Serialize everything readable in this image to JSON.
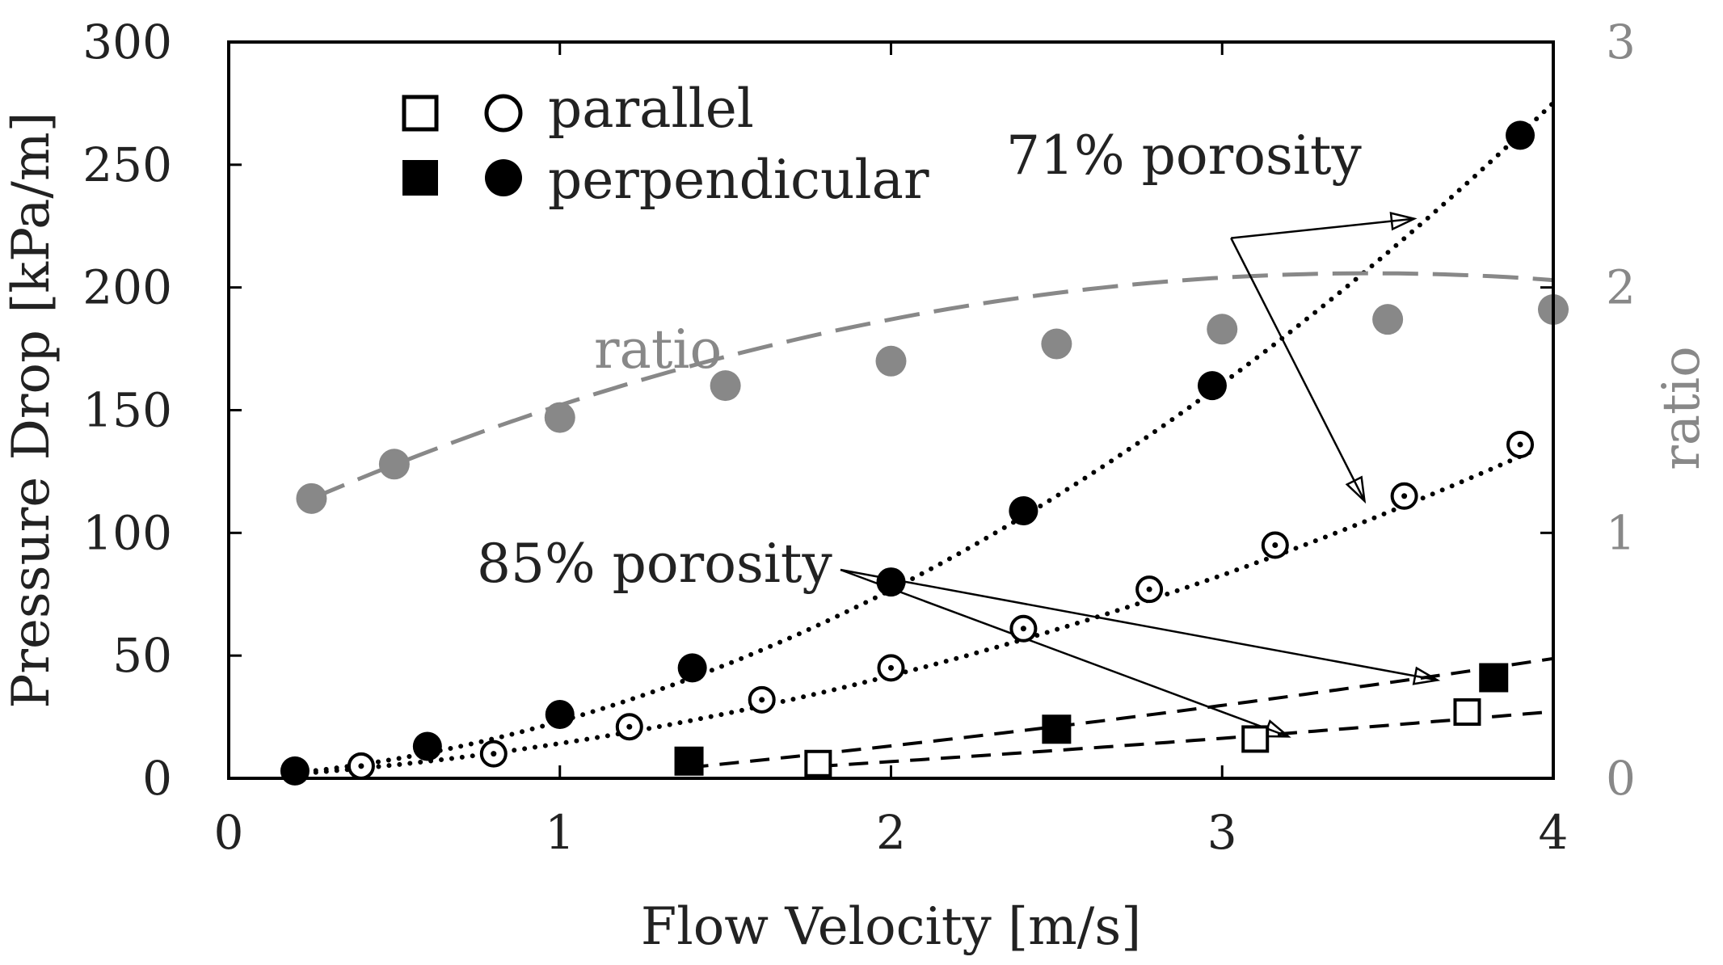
{
  "chart_data": {
    "type": "scatter",
    "title": "",
    "xlabel": "Flow Velocity [m/s]",
    "ylabel": "Pressure Drop [kPa/m]",
    "y2label": "ratio",
    "xlim": [
      0,
      4
    ],
    "ylim": [
      0,
      300
    ],
    "y2lim": [
      0,
      3
    ],
    "x_ticks": [
      0,
      1,
      2,
      3,
      4
    ],
    "x_tick_labels": [
      "0",
      "1",
      "2",
      "3",
      "4"
    ],
    "y_ticks": [
      0,
      50,
      100,
      150,
      200,
      250,
      300
    ],
    "y_tick_labels": [
      "0",
      "50",
      "100",
      "150",
      "200",
      "250",
      "300"
    ],
    "y2_ticks": [
      0,
      1,
      2,
      3
    ],
    "y2_tick_labels": [
      "0",
      "1",
      "2",
      "3"
    ],
    "grid": false,
    "legend": {
      "placement": "top-left",
      "entries": [
        {
          "label": "parallel",
          "markers": [
            "open-square",
            "open-circle"
          ]
        },
        {
          "label": "perpendicular",
          "markers": [
            "filled-square",
            "filled-circle"
          ]
        }
      ]
    },
    "series": [
      {
        "name": "71% porosity perpendicular",
        "marker": "filled-circle",
        "color": "#000000",
        "axis": "left",
        "x": [
          0.2,
          0.6,
          1.0,
          1.4,
          2.0,
          2.4,
          2.97,
          3.9
        ],
        "y": [
          3,
          13,
          26,
          45,
          80,
          109,
          160,
          262
        ]
      },
      {
        "name": "71% porosity parallel",
        "marker": "open-circle",
        "color": "#000000",
        "axis": "left",
        "x": [
          0.4,
          0.8,
          1.21,
          1.61,
          2.0,
          2.4,
          2.78,
          3.16,
          3.55,
          3.9
        ],
        "y": [
          5,
          10,
          21,
          32,
          45,
          61,
          77,
          95,
          115,
          136
        ]
      },
      {
        "name": "85% porosity perpendicular",
        "marker": "filled-square",
        "color": "#000000",
        "axis": "left",
        "x": [
          1.39,
          2.5,
          3.82
        ],
        "y": [
          7,
          20,
          41
        ]
      },
      {
        "name": "85% porosity parallel",
        "marker": "open-square",
        "color": "#000000",
        "axis": "left",
        "x": [
          1.78,
          3.1,
          3.74
        ],
        "y": [
          6,
          16,
          27
        ]
      },
      {
        "name": "ratio",
        "marker": "filled-circle",
        "color": "#888888",
        "axis": "right",
        "x": [
          0.25,
          0.5,
          1.0,
          1.5,
          2.0,
          2.5,
          3.0,
          3.5,
          4.0
        ],
        "y": [
          1.14,
          1.28,
          1.47,
          1.6,
          1.7,
          1.77,
          1.83,
          1.87,
          1.91
        ]
      }
    ],
    "fits": [
      {
        "name": "71% perpendicular fit",
        "style": "dotted",
        "axis": "left",
        "poly": [
          0,
          8,
          15.2
        ],
        "x_range": [
          0.2,
          4.0
        ]
      },
      {
        "name": "71% parallel fit",
        "style": "dotted",
        "axis": "left",
        "poly": [
          0,
          7.5,
          6.7
        ],
        "x_range": [
          0.2,
          3.95
        ]
      },
      {
        "name": "85% perpendicular fit",
        "style": "dashed",
        "axis": "left",
        "poly": [
          -12,
          10,
          1.3
        ],
        "x_range": [
          1.39,
          4.0
        ]
      },
      {
        "name": "85% parallel fit",
        "style": "dashed",
        "axis": "left",
        "poly": [
          -8,
          6,
          0.7
        ],
        "x_range": [
          1.78,
          4.0
        ]
      },
      {
        "name": "ratio fit",
        "style": "dashed",
        "axis": "right",
        "poly": [
          0.99,
          0.62,
          -0.09
        ],
        "x_range": [
          0.25,
          4.0
        ],
        "color": "#888888"
      }
    ],
    "annotations": [
      {
        "text": "71% porosity",
        "at": [
          3.1,
          250
        ],
        "arrows_to": [
          [
            3.58,
            228
          ],
          [
            3.43,
            113
          ]
        ],
        "origin": [
          3.1,
          230
        ]
      },
      {
        "text": "85% porosity",
        "at": [
          1.2,
          85
        ],
        "arrows_to": [
          [
            3.65,
            40
          ],
          [
            3.2,
            17
          ]
        ],
        "origin": [
          1.85,
          84
        ]
      },
      {
        "text": "ratio",
        "at": [
          1.35,
          1.73
        ],
        "color": "#888888"
      }
    ]
  }
}
